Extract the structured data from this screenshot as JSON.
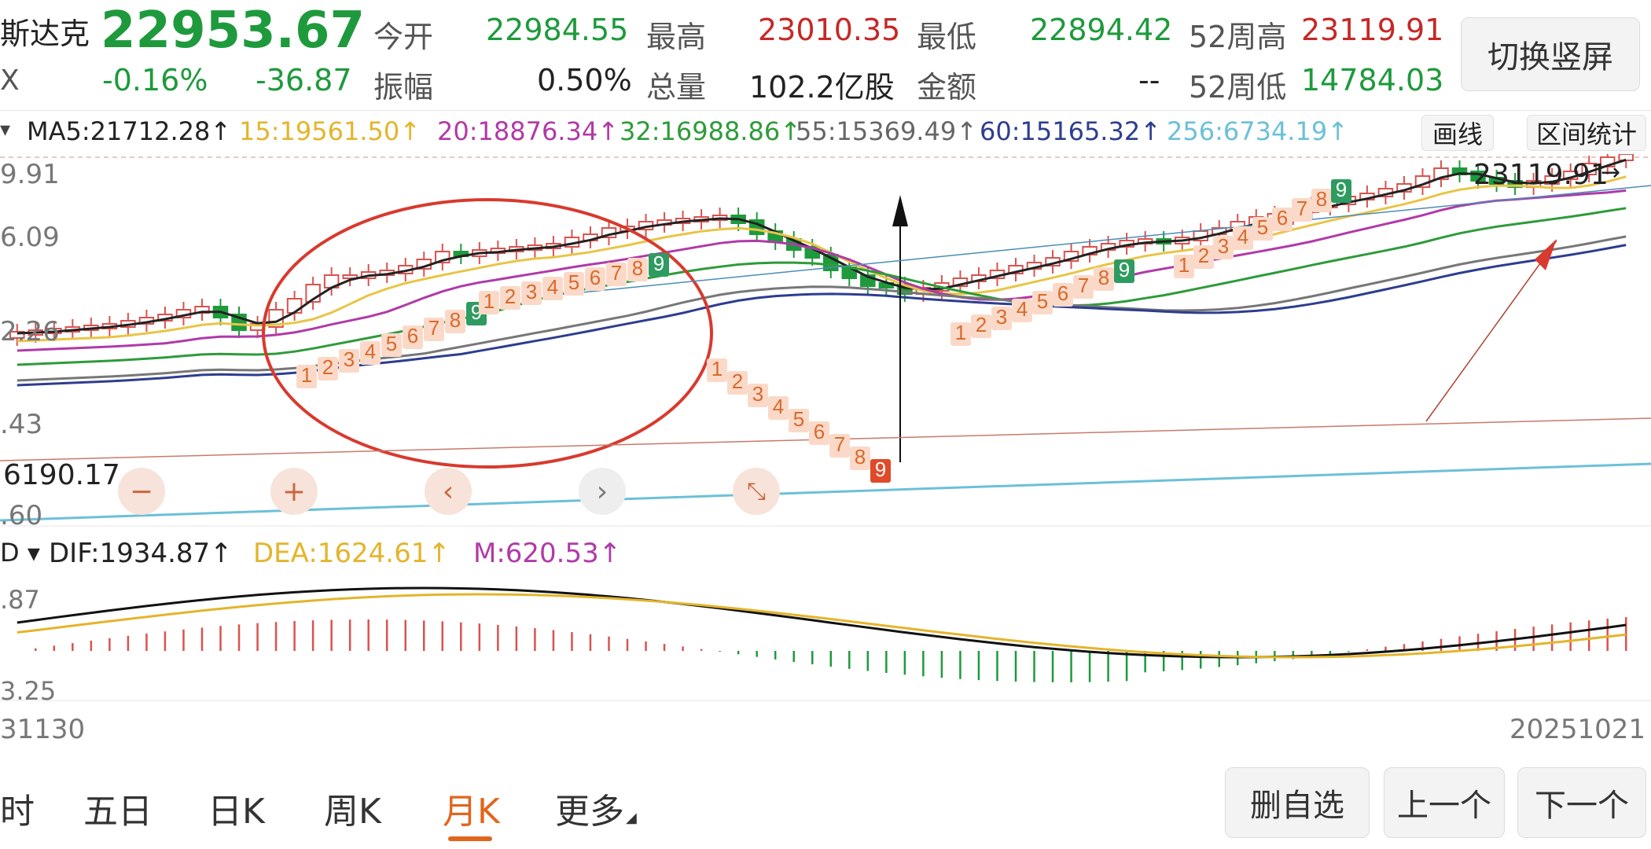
{
  "header": {
    "name": "纳斯达克",
    "name_visible": "斯达克",
    "name_sub": "X",
    "price": "22953.67",
    "change_pct": "-0.16%",
    "change_val": "-36.87",
    "open_label": "今开",
    "open": "22984.55",
    "high_label": "最高",
    "high": "23010.35",
    "low_label": "最低",
    "low": "22894.42",
    "w52h_label": "52周高",
    "w52h": "23119.91",
    "amp_label": "振幅",
    "amp": "0.50%",
    "vol_label": "总量",
    "vol": "102.2亿股",
    "amt_label": "金额",
    "amt": "--",
    "w52l_label": "52周低",
    "w52l": "14784.03",
    "switch_btn": "切换竖屏"
  },
  "ma_bar": {
    "ma5": "MA5:21712.28↑",
    "ma15": "15:19561.50↑",
    "ma20": "20:18876.34↑",
    "ma32": "32:16988.86↑",
    "ma55": "55:15369.49↑",
    "ma60": "60:15165.32↑",
    "ma256": "256:6734.19↑",
    "draw_btn": "画线",
    "stats_btn": "区间统计"
  },
  "price_axis": [
    "9.91",
    "6.09",
    "2.26",
    ".43",
    ".60"
  ],
  "marker_high": "23119.91",
  "marker_low": "6190.17",
  "controls": {
    "minus": "−",
    "plus": "+",
    "prev": "‹",
    "next": "›"
  },
  "macd": {
    "selector": "D ▾",
    "dif": "DIF:1934.87↑",
    "dea": "DEA:1624.61↑",
    "m": "M:620.53↑",
    "axis_top": ".87",
    "axis_bottom": "3.25"
  },
  "dates": {
    "start": "31130",
    "end": "20251021"
  },
  "tabs": [
    {
      "label": "时"
    },
    {
      "label": "五日"
    },
    {
      "label": "日K"
    },
    {
      "label": "周K"
    },
    {
      "label": "月K"
    },
    {
      "label": "更多"
    }
  ],
  "bottom_buttons": {
    "remove": "删自选",
    "prev": "上一个",
    "next": "下一个"
  },
  "td_counts": {
    "g1": [
      "1",
      "2",
      "3",
      "4",
      "5",
      "6",
      "7",
      "8",
      "9"
    ],
    "g2": [
      "1",
      "2",
      "3",
      "4",
      "5",
      "6",
      "7",
      "8",
      "9"
    ],
    "g3": [
      "1",
      "2",
      "3",
      "4",
      "5",
      "6",
      "7",
      "8",
      "9"
    ],
    "g4": [
      "1",
      "2",
      "3",
      "4",
      "5",
      "6",
      "7",
      "8",
      "9"
    ],
    "g5": [
      "1",
      "2",
      "3",
      "4",
      "5",
      "6",
      "7",
      "8",
      "9"
    ]
  },
  "colors": {
    "up": "#d9534f",
    "down": "#1e9a3c",
    "ma5": "#222222",
    "ma15": "#e8c547",
    "ma20": "#b03aa8",
    "ma32": "#2e9b3a",
    "ma55": "#777777",
    "ma60": "#2d3d8f",
    "ma256": "#6cc0d8"
  }
}
